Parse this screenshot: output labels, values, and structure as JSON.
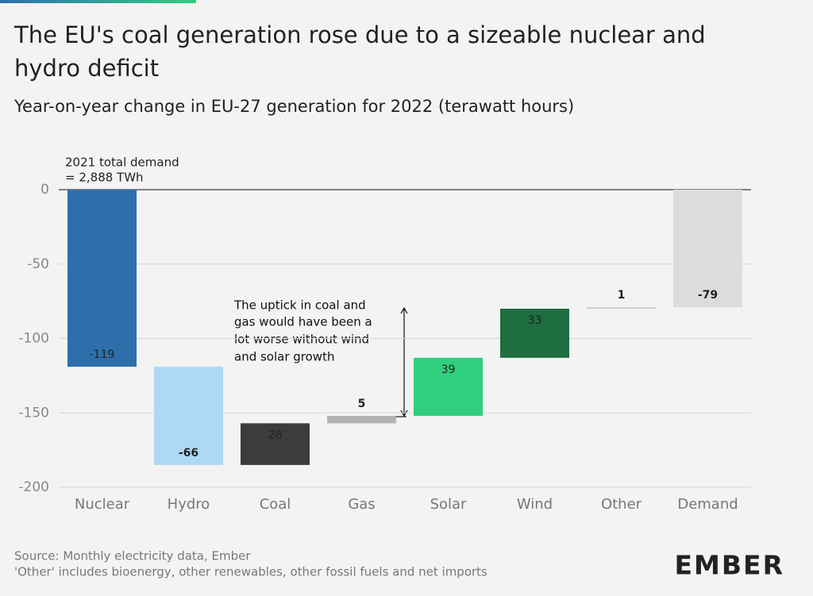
{
  "chart_data": {
    "type": "waterfall",
    "title_lines": [
      "The EU's coal generation rose due to a sizeable nuclear and",
      "hydro deficit"
    ],
    "subtitle": "Year-on-year change in EU-27 generation for 2022 (terawatt hours)",
    "categories": [
      "Nuclear",
      "Hydro",
      "Coal",
      "Gas",
      "Solar",
      "Wind",
      "Other",
      "Demand"
    ],
    "values": [
      -119,
      -66,
      28,
      5,
      39,
      33,
      1,
      -79
    ],
    "colors": [
      "#2e6fab",
      "#aed8f3",
      "#3c3c3c",
      "#b3b3b3",
      "#2fcf7e",
      "#1f6e40",
      "#cfcfcf",
      "#dcdcdc"
    ],
    "label_colors": [
      "#ffffff",
      "#111111",
      "#ffffff",
      "#111111",
      "#ffffff",
      "#ffffff",
      "#111111",
      "#111111"
    ],
    "last_is_total": true,
    "ylim": [
      -200,
      0
    ],
    "yticks": [
      -200,
      -150,
      -100,
      -50,
      0
    ],
    "grid": true,
    "baseline_note": [
      "2021 total demand",
      "= 2,888 TWh"
    ],
    "annotation": [
      "The uptick in coal and",
      "gas would have been a",
      "lot worse without wind",
      "and solar growth"
    ],
    "source": [
      "Source: Monthly electricity data, Ember",
      "'Other' includes bioenergy, other renewables, other fossil fuels and net imports"
    ],
    "logo": "EMBER"
  }
}
